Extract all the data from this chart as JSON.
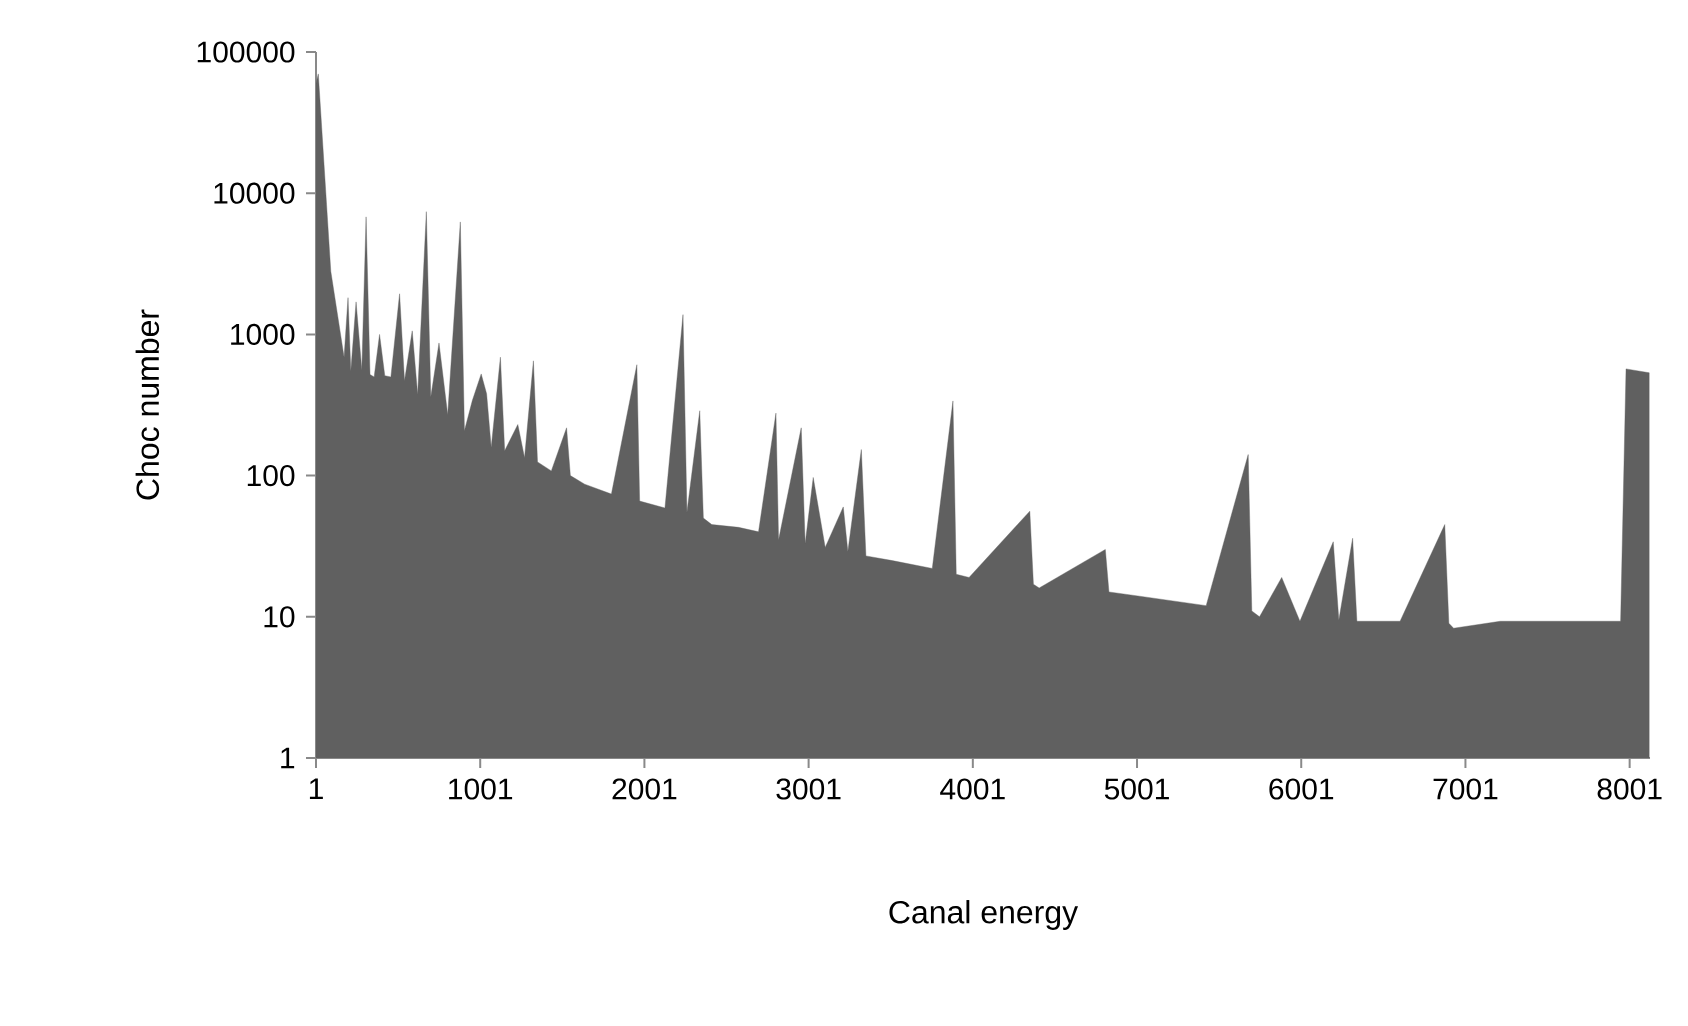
{
  "chart_data": {
    "type": "area",
    "xlabel": "Canal energy",
    "ylabel": "Choc number",
    "log": "y",
    "xlim": [
      1,
      8125
    ],
    "xticks": [
      1,
      1001,
      2001,
      3001,
      4001,
      5001,
      6001,
      7001,
      8001
    ],
    "ylim": [
      1,
      100000
    ],
    "yticks": [
      1,
      10,
      100,
      1000,
      10000,
      100000
    ],
    "grid": false,
    "color": "#606060",
    "x": [
      1,
      15,
      91,
      172,
      196,
      213,
      245,
      280,
      306,
      330,
      355,
      388,
      420,
      457,
      510,
      540,
      587,
      620,
      673,
      700,
      750,
      803,
      880,
      905,
      953,
      1007,
      1040,
      1068,
      1124,
      1150,
      1230,
      1271,
      1325,
      1350,
      1434,
      1527,
      1550,
      1637,
      1800,
      1955,
      1972,
      2126,
      2236,
      2260,
      2338,
      2360,
      2411,
      2574,
      2696,
      2802,
      2818,
      2956,
      2980,
      3029,
      3102,
      3212,
      3240,
      3322,
      3350,
      3510,
      3754,
      3880,
      3900,
      3978,
      4348,
      4370,
      4405,
      4808,
      4830,
      5016,
      5422,
      5678,
      5700,
      5747,
      5882,
      5993,
      6196,
      6230,
      6314,
      6340,
      6603,
      6875,
      6900,
      6929,
      7213,
      7580,
      7946,
      7979,
      8120
    ],
    "values": [
      60000,
      70000,
      2800,
      690,
      1820,
      550,
      1700,
      560,
      6800,
      520,
      500,
      1000,
      510,
      500,
      1940,
      470,
      1060,
      375,
      7400,
      360,
      870,
      270,
      6260,
      208,
      340,
      525,
      380,
      158,
      690,
      150,
      230,
      134,
      650,
      125,
      108,
      218,
      100,
      87,
      74,
      610,
      66,
      59,
      1380,
      55,
      288,
      50,
      45,
      43,
      40,
      277,
      35,
      218,
      33,
      97,
      31,
      60,
      29,
      153,
      27,
      25,
      22,
      338,
      20,
      19,
      56,
      17,
      16,
      30,
      15,
      14,
      12,
      141,
      11,
      10,
      19,
      9.3,
      34,
      9.5,
      36,
      9.3,
      9.3,
      45,
      9,
      8.3,
      9.3,
      9.3,
      9.3,
      570,
      535
    ]
  }
}
